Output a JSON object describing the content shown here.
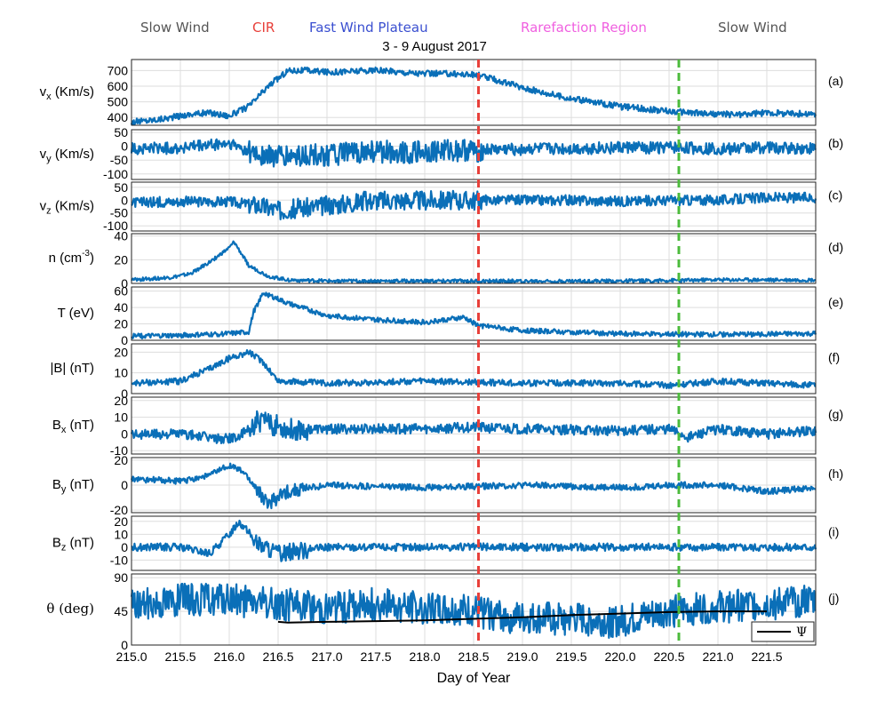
{
  "header": {
    "regions": [
      {
        "label": "Slow Wind",
        "color": "#555555"
      },
      {
        "label": "CIR",
        "color": "#e8403a"
      },
      {
        "label": "Fast Wind Plateau",
        "color": "#3a4fd0"
      },
      {
        "label": "Rarefaction Region",
        "color": "#f060e0"
      },
      {
        "label": "Slow Wind",
        "color": "#555555"
      }
    ],
    "title": "3 - 9 August 2017"
  },
  "chart_data": {
    "type": "line",
    "title": "3 - 9 August 2017",
    "xlabel": "Day of Year",
    "xlim": [
      215.0,
      222.0
    ],
    "xticks": [
      215.0,
      215.5,
      216.0,
      216.5,
      217.0,
      217.5,
      218.0,
      218.5,
      219.0,
      219.5,
      220.0,
      220.5,
      221.0,
      221.5
    ],
    "xtick_labels": [
      "215.0",
      "215.5",
      "216.0",
      "216.5",
      "217.0",
      "217.5",
      "218.0",
      "218.5",
      "219.0",
      "219.5",
      "220.0",
      "220.5",
      "221.0",
      "221.5"
    ],
    "grid": true,
    "line_color": "#0a6fb8",
    "vlines": [
      {
        "x": 218.55,
        "color": "#e8403a",
        "style": "dashed"
      },
      {
        "x": 220.6,
        "color": "#4cbb3c",
        "style": "dashed"
      }
    ],
    "panels": [
      {
        "id": "a",
        "tag": "(a)",
        "ylabel": "vx (Km/s)",
        "ylim": [
          350,
          770
        ],
        "yticks": [
          400,
          500,
          600,
          700
        ],
        "ytick_labels": [
          "400",
          "500",
          "600",
          "700"
        ],
        "x": [
          215.0,
          215.3,
          215.6,
          215.8,
          216.0,
          216.2,
          216.4,
          216.6,
          216.8,
          217.0,
          217.5,
          218.0,
          218.3,
          218.55,
          219.0,
          219.5,
          220.0,
          220.5,
          221.0,
          221.3,
          221.5,
          222.0
        ],
        "y": [
          370,
          390,
          420,
          430,
          410,
          470,
          600,
          700,
          700,
          690,
          700,
          680,
          680,
          670,
          590,
          520,
          470,
          440,
          420,
          420,
          430,
          420
        ],
        "noise": 20
      },
      {
        "id": "b",
        "tag": "(b)",
        "ylabel": "vy (Km/s)",
        "ylim": [
          -120,
          60
        ],
        "yticks": [
          -100,
          -50,
          0,
          50
        ],
        "ytick_labels": [
          "-100",
          "-50",
          "0",
          "50"
        ],
        "x": [
          215.0,
          215.5,
          216.0,
          216.3,
          216.5,
          217.0,
          217.5,
          218.0,
          218.5,
          219.0,
          219.5,
          220.0,
          220.5,
          221.0,
          221.5,
          222.0
        ],
        "y": [
          -10,
          -5,
          10,
          -30,
          -40,
          -30,
          -20,
          -20,
          -15,
          -10,
          -10,
          -5,
          -5,
          -10,
          -5,
          -10
        ],
        "noise": 22
      },
      {
        "id": "c",
        "tag": "(c)",
        "ylabel": "vz (Km/s)",
        "ylim": [
          -120,
          70
        ],
        "yticks": [
          -100,
          -50,
          0,
          50
        ],
        "ytick_labels": [
          "-100",
          "-50",
          "0",
          "50"
        ],
        "x": [
          215.0,
          215.5,
          216.0,
          216.3,
          216.5,
          217.0,
          217.5,
          218.0,
          218.5,
          219.0,
          219.5,
          220.0,
          220.5,
          221.0,
          221.5,
          222.0
        ],
        "y": [
          -10,
          -5,
          -5,
          -20,
          -40,
          -20,
          0,
          0,
          0,
          0,
          0,
          -5,
          0,
          0,
          10,
          10
        ],
        "noise": 20
      },
      {
        "id": "d",
        "tag": "(d)",
        "ylabel": "n (cm^-3)",
        "ylim": [
          0,
          42
        ],
        "yticks": [
          0,
          20,
          40
        ],
        "ytick_labels": [
          "0",
          "20",
          "40"
        ],
        "x": [
          215.0,
          215.4,
          215.6,
          215.8,
          216.0,
          216.05,
          216.2,
          216.4,
          216.6,
          217.0,
          218.0,
          219.0,
          220.0,
          221.0,
          222.0
        ],
        "y": [
          3,
          5,
          8,
          18,
          30,
          35,
          15,
          6,
          3,
          2,
          2,
          2,
          2,
          3,
          3
        ],
        "noise": 1.5
      },
      {
        "id": "e",
        "tag": "(e)",
        "ylabel": "T (eV)",
        "ylim": [
          0,
          65
        ],
        "yticks": [
          0,
          20,
          40,
          60
        ],
        "ytick_labels": [
          "0",
          "20",
          "40",
          "60"
        ],
        "x": [
          215.0,
          215.5,
          216.0,
          216.2,
          216.25,
          216.35,
          216.6,
          217.0,
          217.5,
          218.0,
          218.4,
          218.55,
          219.0,
          219.5,
          220.0,
          221.0,
          222.0
        ],
        "y": [
          5,
          6,
          8,
          10,
          35,
          58,
          45,
          30,
          25,
          22,
          28,
          18,
          12,
          10,
          8,
          7,
          8
        ],
        "noise": 3
      },
      {
        "id": "f",
        "tag": "(f)",
        "ylabel": "|B| (nT)",
        "ylim": [
          0,
          24
        ],
        "yticks": [
          0,
          10,
          20
        ],
        "ytick_labels": [
          "0",
          "10",
          "20"
        ],
        "x": [
          215.0,
          215.5,
          215.8,
          216.0,
          216.2,
          216.35,
          216.5,
          217.0,
          218.0,
          219.0,
          220.0,
          220.5,
          221.0,
          222.0
        ],
        "y": [
          5,
          6,
          12,
          17,
          20,
          15,
          6,
          5,
          6,
          5,
          5,
          4,
          6,
          4
        ],
        "noise": 1.5
      },
      {
        "id": "g",
        "tag": "(g)",
        "ylabel": "Bx (nT)",
        "ylim": [
          -12,
          22
        ],
        "yticks": [
          -10,
          0,
          10,
          20
        ],
        "ytick_labels": [
          "-10",
          "0",
          "10",
          "20"
        ],
        "x": [
          215.0,
          215.5,
          215.9,
          216.1,
          216.3,
          216.6,
          217.0,
          218.0,
          218.5,
          219.0,
          220.0,
          220.5,
          220.7,
          221.0,
          221.5,
          222.0
        ],
        "y": [
          0,
          0,
          -3,
          -2,
          8,
          3,
          3,
          3,
          4,
          3,
          2,
          3,
          -2,
          3,
          0,
          2
        ],
        "noise": 3
      },
      {
        "id": "h",
        "tag": "(h)",
        "ylabel": "By (nT)",
        "ylim": [
          -22,
          22
        ],
        "yticks": [
          -20,
          0,
          20
        ],
        "ytick_labels": [
          "-20",
          "0",
          "20"
        ],
        "x": [
          215.0,
          215.5,
          215.8,
          216.0,
          216.15,
          216.3,
          216.4,
          216.6,
          217.0,
          218.0,
          219.0,
          220.0,
          220.5,
          221.0,
          221.5,
          222.0
        ],
        "y": [
          5,
          3,
          8,
          16,
          10,
          -5,
          -15,
          -5,
          0,
          -2,
          0,
          -2,
          0,
          0,
          -5,
          -2
        ],
        "noise": 2.5
      },
      {
        "id": "i",
        "tag": "(i)",
        "ylabel": "Bz (nT)",
        "ylim": [
          -18,
          24
        ],
        "yticks": [
          -10,
          0,
          10,
          20
        ],
        "ytick_labels": [
          "-10",
          "0",
          "10",
          "20"
        ],
        "x": [
          215.0,
          215.5,
          215.8,
          216.0,
          216.1,
          216.3,
          216.5,
          217.0,
          218.0,
          219.0,
          220.0,
          221.0,
          222.0
        ],
        "y": [
          0,
          0,
          -5,
          10,
          20,
          2,
          -5,
          0,
          0,
          0,
          0,
          0,
          0
        ],
        "noise": 3
      },
      {
        "id": "j",
        "tag": "(j)",
        "ylabel": "θ (deg)",
        "ylim": [
          0,
          95
        ],
        "yticks": [
          0,
          45,
          90
        ],
        "ytick_labels": [
          "0",
          "45",
          "90"
        ],
        "x": [
          215.0,
          215.5,
          216.0,
          216.5,
          217.0,
          217.5,
          218.0,
          218.5,
          219.0,
          219.5,
          220.0,
          220.5,
          221.0,
          221.5,
          222.0
        ],
        "y": [
          55,
          60,
          60,
          55,
          50,
          55,
          50,
          45,
          35,
          35,
          30,
          45,
          50,
          55,
          60
        ],
        "noise": 22,
        "psi": {
          "name": "Ψ",
          "color": "#000000",
          "x": [
            216.5,
            216.6,
            217.0,
            217.5,
            218.0,
            218.5,
            219.0,
            219.5,
            220.0,
            220.5,
            221.0,
            221.5
          ],
          "y": [
            31,
            30,
            31,
            32,
            33,
            35,
            37,
            40,
            42,
            44,
            45,
            45
          ]
        }
      }
    ]
  }
}
